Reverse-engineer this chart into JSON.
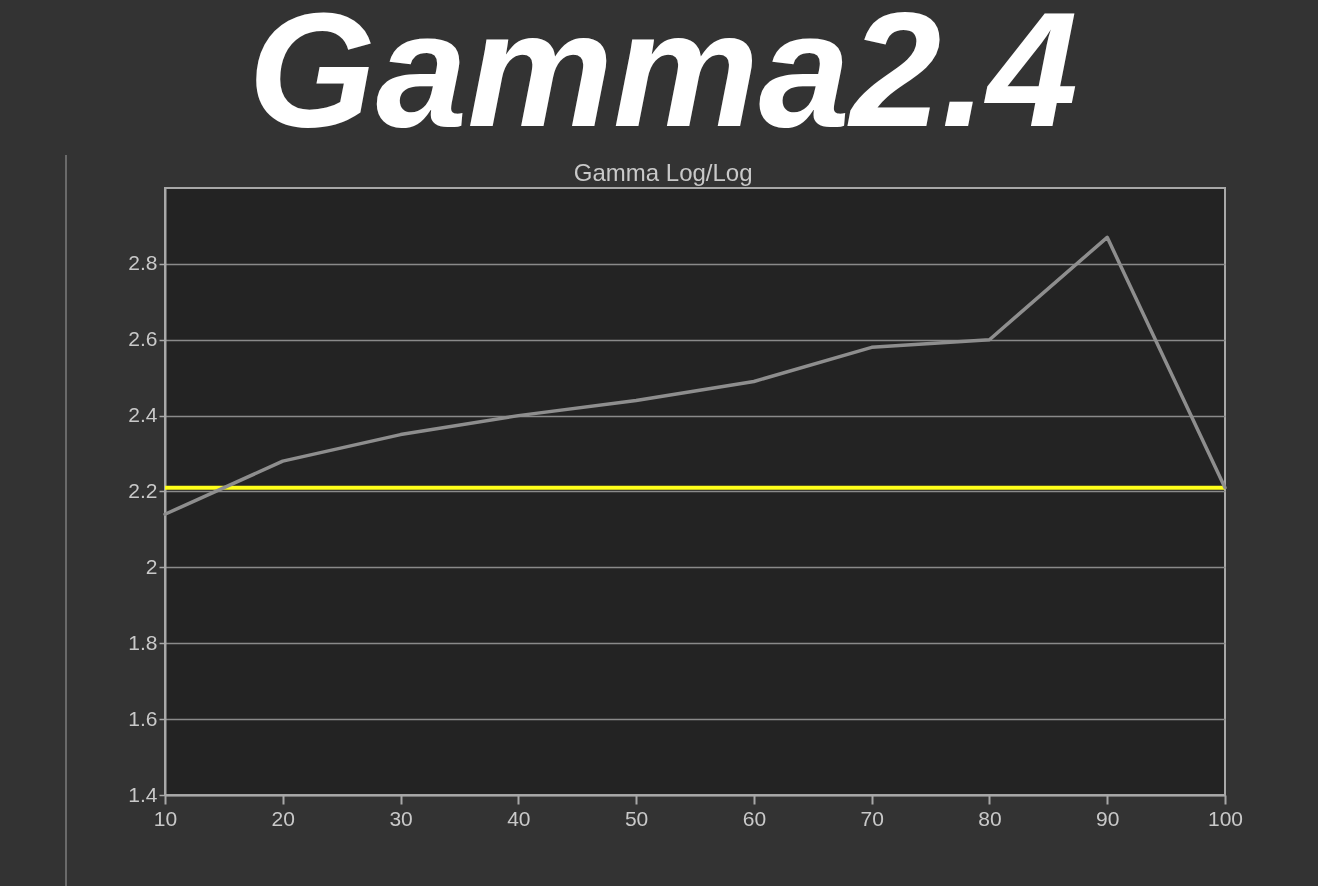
{
  "chart_data": {
    "type": "line",
    "title": "Gamma2.4",
    "subtitle": "Gamma Log/Log",
    "x": [
      10,
      20,
      30,
      40,
      50,
      60,
      70,
      80,
      90,
      100
    ],
    "series": [
      {
        "color": "#8e8e8e",
        "values": [
          2.14,
          2.28,
          2.35,
          2.4,
          2.44,
          2.49,
          2.58,
          2.6,
          2.87,
          2.21
        ]
      }
    ],
    "xlim": [
      10,
      100
    ],
    "xticks": [
      10,
      20,
      30,
      40,
      50,
      60,
      70,
      80,
      90,
      100
    ],
    "ylim": [
      1.4,
      3.0
    ],
    "yticks": [
      1.4,
      1.6,
      1.8,
      2,
      2.2,
      2.4,
      2.6,
      2.8
    ],
    "grid": "y",
    "ref_lines": [
      {
        "axis": "y",
        "value": 2.21,
        "color": "#ffff1a"
      }
    ]
  }
}
